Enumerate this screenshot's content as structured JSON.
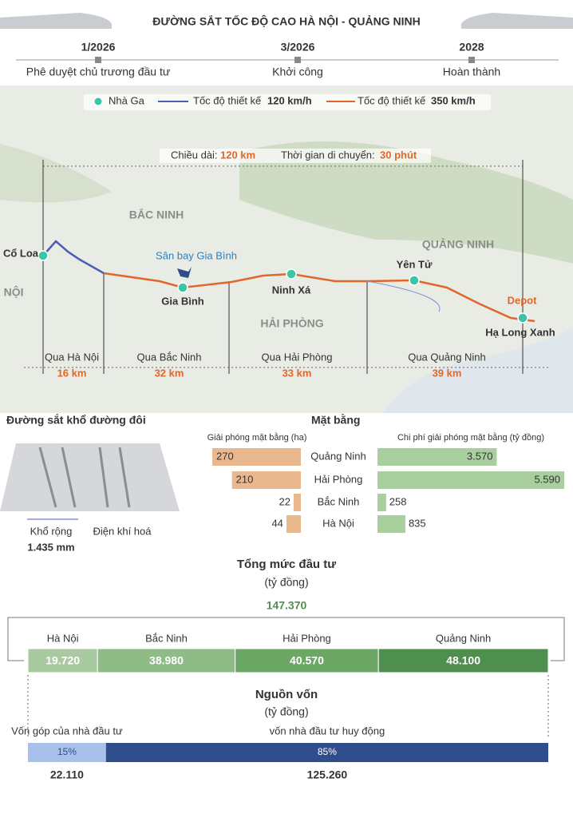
{
  "header": {
    "title": "ĐƯỜNG SẮT TỐC ĐỘ CAO HÀ NỘI - QUẢNG NINH"
  },
  "timeline": [
    {
      "date": "1/2026",
      "label": "Phê duyệt chủ trương đầu tư"
    },
    {
      "date": "3/2026",
      "label": "Khởi công"
    },
    {
      "date": "2028",
      "label": "Hoàn thành"
    }
  ],
  "map": {
    "legend": {
      "station": "Nhà Ga",
      "line120": "Tốc độ thiết kế",
      "speed120": "120 km/h",
      "line350": "Tốc độ thiết kế",
      "speed350": "350 km/h"
    },
    "length_label": "Chiều dài:",
    "length": "120 km",
    "time_label": "Thời gian di chuyển:",
    "time": "30 phút",
    "regions": [
      "BẮC NINH",
      "HẢI PHÒNG",
      "QUẢNG NINH",
      "HÀ NỘI"
    ],
    "stations": [
      "Cổ Loa",
      "Gia Bình",
      "Ninh Xá",
      "Yên Tử",
      "Hạ Long Xanh"
    ],
    "airport": "Sân bay Gia Bình",
    "depot": "Depot",
    "segments": [
      {
        "name": "Qua Hà Nội",
        "length": "16 km"
      },
      {
        "name": "Qua Bắc Ninh",
        "length": "32 km"
      },
      {
        "name": "Qua Hải Phòng",
        "length": "33 km"
      },
      {
        "name": "Qua Quảng Ninh",
        "length": "39 km"
      }
    ]
  },
  "track": {
    "title": "Đường sắt khổ đường đôi",
    "gauge_label": "Khổ rộng",
    "gauge": "1.435 mm",
    "electrified": "Điện khí hoá"
  },
  "clearance": {
    "title": "Mặt bằng",
    "area_title": "Giải phóng mặt bằng (ha)",
    "cost_title": "Chi phí giải phóng mặt bằng (tỷ đồng)",
    "provinces": [
      "Quảng Ninh",
      "Hải Phòng",
      "Bắc Ninh",
      "Hà Nội"
    ],
    "area": [
      270,
      210,
      22,
      44
    ],
    "cost": [
      3570,
      5590,
      258,
      835
    ],
    "cost_labels": [
      "3.570",
      "5.590",
      "258",
      "835"
    ]
  },
  "investment": {
    "title": "Tổng mức đầu tư",
    "unit": "(tỷ đồng)",
    "total": 147370,
    "total_label": "147.370",
    "provinces": [
      "Hà Nội",
      "Bắc Ninh",
      "Hải Phòng",
      "Quảng Ninh"
    ],
    "values": [
      19720,
      38980,
      40570,
      48100
    ],
    "value_labels": [
      "19.720",
      "38.980",
      "40.570",
      "48.100"
    ]
  },
  "funding": {
    "title": "Nguồn vốn",
    "unit": "(tỷ đồng)",
    "sources": [
      "Vốn góp của nhà đầu tư",
      "vốn nhà đầu tư huy động"
    ],
    "shares": [
      15,
      85
    ],
    "share_labels": [
      "15%",
      "85%"
    ],
    "amounts": [
      "22.110",
      "125.260"
    ]
  }
}
